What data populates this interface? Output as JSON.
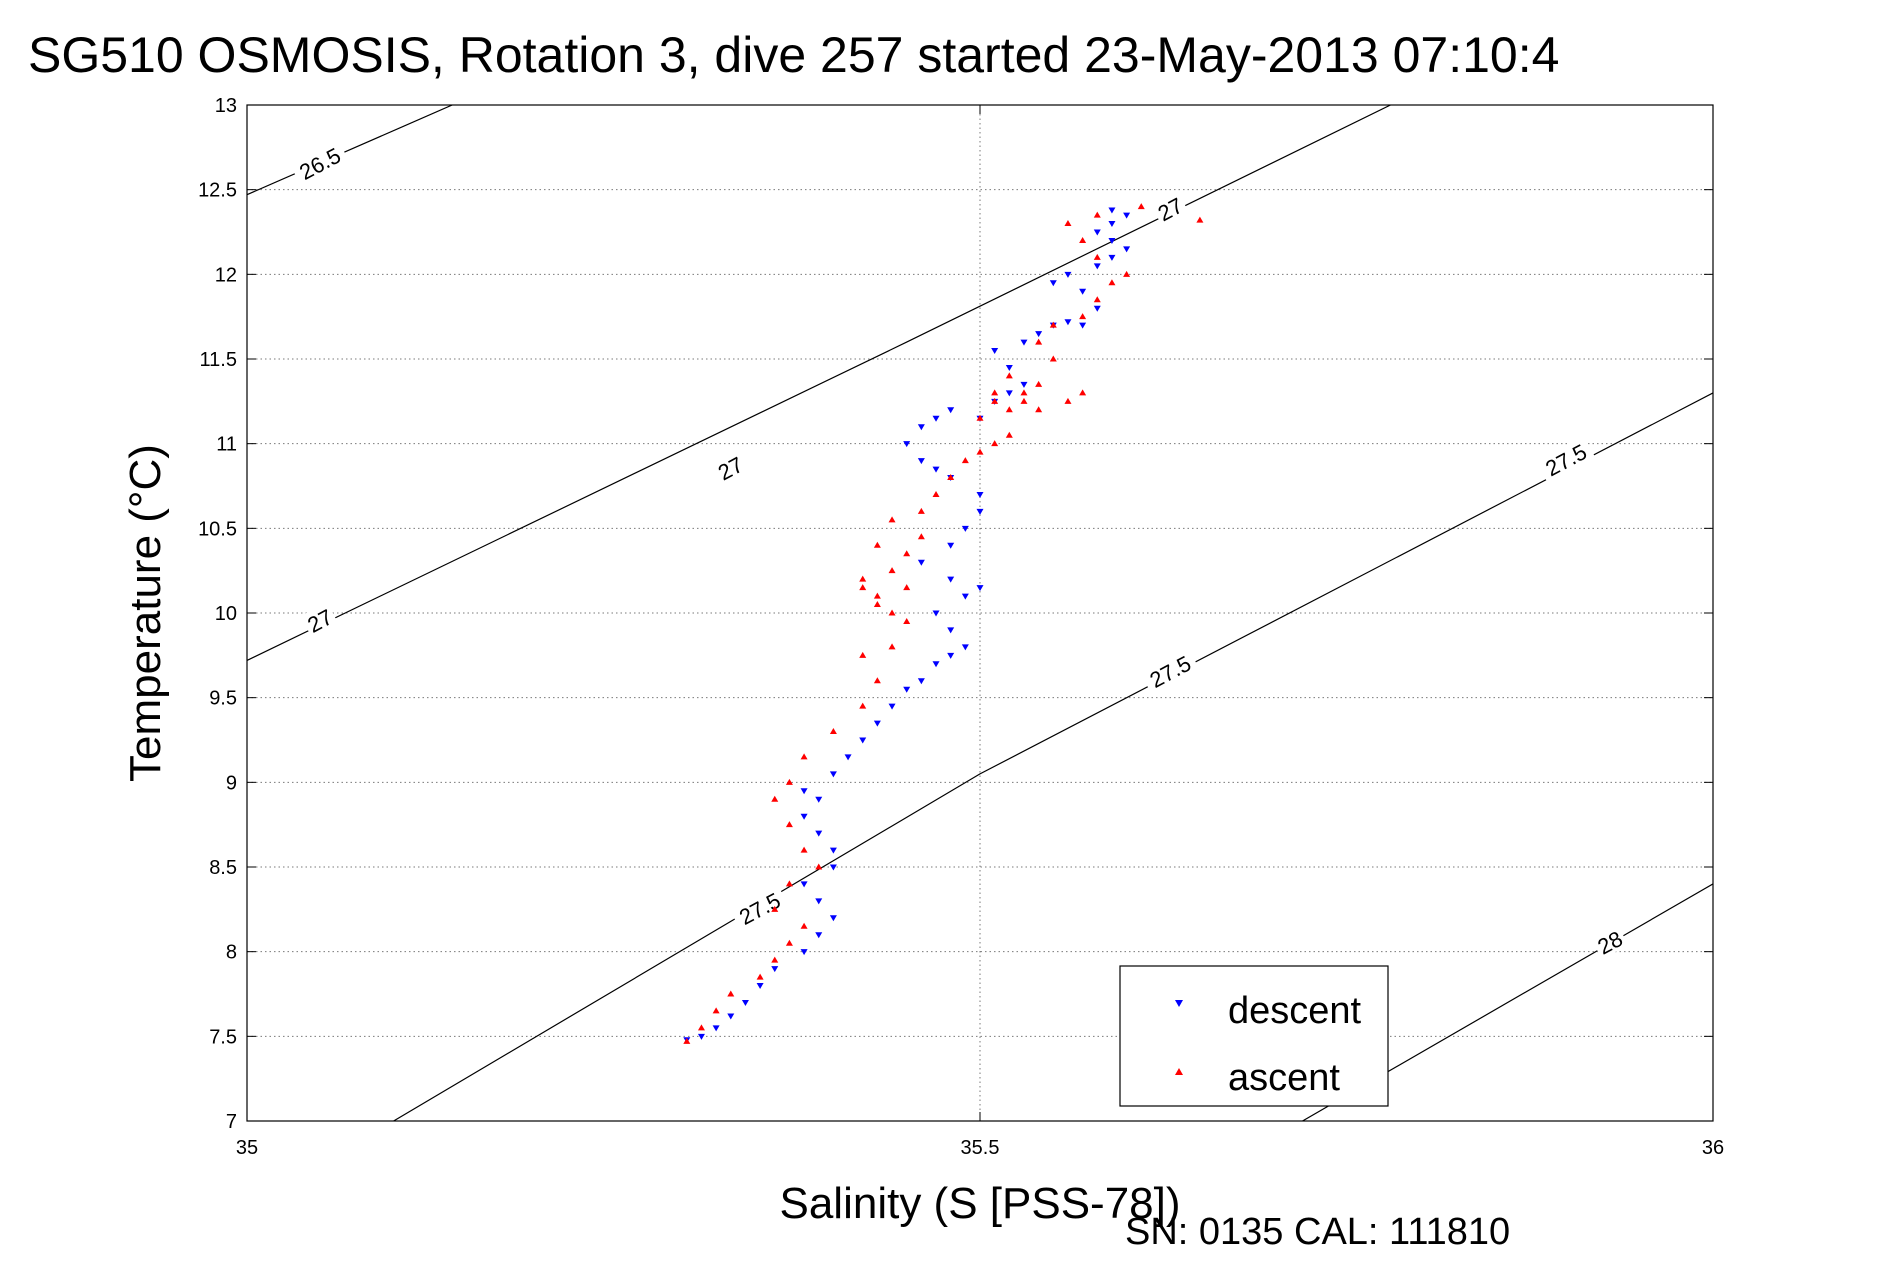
{
  "chart_data": {
    "type": "scatter",
    "title": "SG510 OSMOSIS, Rotation 3, dive 257 started 23-May-2013 07:10:4",
    "xlabel": "Salinity (S [PSS-78])",
    "ylabel": "Temperature (°C)",
    "xlim": [
      35,
      36
    ],
    "ylim": [
      7,
      13
    ],
    "xticks": [
      "35",
      "35.5",
      "36"
    ],
    "yticks": [
      "7",
      "7.5",
      "8",
      "8.5",
      "9",
      "9.5",
      "10",
      "10.5",
      "11",
      "11.5",
      "12",
      "12.5",
      "13"
    ],
    "grid": true,
    "legend_position": "bottom-right",
    "series": [
      {
        "name": "descent",
        "color": "#0000ff",
        "marker": "triangle-down",
        "x": [
          35.3,
          35.31,
          35.32,
          35.33,
          35.34,
          35.35,
          35.36,
          35.38,
          35.39,
          35.4,
          35.39,
          35.38,
          35.4,
          35.4,
          35.39,
          35.38,
          35.39,
          35.38,
          35.4,
          35.41,
          35.42,
          35.43,
          35.44,
          35.45,
          35.46,
          35.47,
          35.48,
          35.49,
          35.48,
          35.47,
          35.49,
          35.5,
          35.48,
          35.46,
          35.48,
          35.49,
          35.5,
          35.5,
          35.48,
          35.47,
          35.46,
          35.45,
          35.46,
          35.47,
          35.48,
          35.5,
          35.51,
          35.52,
          35.53,
          35.52,
          35.51,
          35.53,
          35.54,
          35.55,
          35.56,
          35.57,
          35.58,
          35.57,
          35.55,
          35.56,
          35.58,
          35.59,
          35.6,
          35.59,
          35.58,
          35.59,
          35.6,
          35.59
        ],
        "y": [
          7.48,
          7.5,
          7.55,
          7.62,
          7.7,
          7.8,
          7.9,
          8.0,
          8.1,
          8.2,
          8.3,
          8.4,
          8.5,
          8.6,
          8.7,
          8.8,
          8.9,
          8.95,
          9.05,
          9.15,
          9.25,
          9.35,
          9.45,
          9.55,
          9.6,
          9.7,
          9.75,
          9.8,
          9.9,
          10.0,
          10.1,
          10.15,
          10.2,
          10.3,
          10.4,
          10.5,
          10.6,
          10.7,
          10.8,
          10.85,
          10.9,
          11.0,
          11.1,
          11.15,
          11.2,
          11.15,
          11.25,
          11.3,
          11.35,
          11.45,
          11.55,
          11.6,
          11.65,
          11.7,
          11.72,
          11.7,
          11.8,
          11.9,
          11.95,
          12.0,
          12.05,
          12.1,
          12.15,
          12.2,
          12.25,
          12.3,
          12.35,
          12.38
        ]
      },
      {
        "name": "ascent",
        "color": "#ff0000",
        "marker": "triangle-up",
        "x": [
          35.3,
          35.31,
          35.32,
          35.33,
          35.35,
          35.36,
          35.37,
          35.38,
          35.36,
          35.37,
          35.39,
          35.38,
          35.37,
          35.36,
          35.37,
          35.38,
          35.4,
          35.42,
          35.43,
          35.42,
          35.44,
          35.45,
          35.43,
          35.42,
          35.44,
          35.45,
          35.46,
          35.44,
          35.43,
          35.42,
          35.43,
          35.44,
          35.45,
          35.46,
          35.47,
          35.48,
          35.49,
          35.5,
          35.51,
          35.52,
          35.5,
          35.51,
          35.53,
          35.54,
          35.52,
          35.51,
          35.52,
          35.53,
          35.54,
          35.56,
          35.57,
          35.55,
          35.54,
          35.55,
          35.57,
          35.58,
          35.59,
          35.6,
          35.58,
          35.57,
          35.56,
          35.58,
          35.61,
          35.65
        ],
        "y": [
          7.47,
          7.55,
          7.65,
          7.75,
          7.85,
          7.95,
          8.05,
          8.15,
          8.25,
          8.4,
          8.5,
          8.6,
          8.75,
          8.9,
          9.0,
          9.15,
          9.3,
          9.45,
          9.6,
          9.75,
          9.8,
          9.95,
          10.05,
          10.15,
          10.25,
          10.35,
          10.45,
          10.55,
          10.4,
          10.2,
          10.1,
          10.0,
          10.15,
          10.6,
          10.7,
          10.8,
          10.9,
          10.95,
          11.0,
          11.05,
          11.15,
          11.25,
          11.3,
          11.35,
          11.4,
          11.3,
          11.2,
          11.25,
          11.2,
          11.25,
          11.3,
          11.5,
          11.6,
          11.7,
          11.75,
          11.85,
          11.95,
          12.0,
          12.1,
          12.2,
          12.3,
          12.35,
          12.4,
          12.32
        ]
      }
    ],
    "contours": [
      {
        "label": "26.5",
        "points": [
          [
            35,
            12.47
          ],
          [
            35.14,
            13
          ]
        ],
        "label_at": [
          35.05,
          12.65
        ]
      },
      {
        "label": "27",
        "points": [
          [
            35,
            9.72
          ],
          [
            35.45,
            11.6
          ],
          [
            35.78,
            13
          ]
        ],
        "label_at": [
          35.05,
          9.95
        ]
      },
      {
        "label": "27",
        "label_at": [
          35.33,
          10.85
        ]
      },
      {
        "label": "27",
        "label_at": [
          35.63,
          12.38
        ]
      },
      {
        "label": "27.5",
        "points": [
          [
            35.1,
            7
          ],
          [
            35.5,
            9.05
          ],
          [
            36,
            11.3
          ]
        ],
        "label_at": [
          35.35,
          8.25
        ]
      },
      {
        "label": "27.5",
        "label_at": [
          35.63,
          9.65
        ]
      },
      {
        "label": "27.5",
        "label_at": [
          35.9,
          10.9
        ]
      },
      {
        "label": "28",
        "points": [
          [
            35.72,
            7
          ],
          [
            36,
            8.4
          ]
        ],
        "label_at": [
          35.93,
          8.05
        ]
      }
    ]
  },
  "footer": {
    "text": "SN: 0135  CAL: 111810"
  }
}
